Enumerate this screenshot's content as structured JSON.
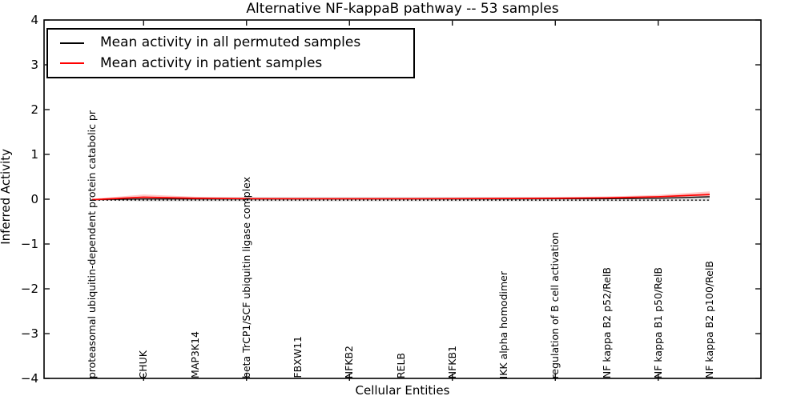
{
  "chart_data": {
    "type": "line",
    "title": "Alternative NF-kappaB pathway -- 53 samples",
    "xlabel": "Cellular Entities",
    "ylabel": "Inferred Activity",
    "ylim": [
      -4,
      4
    ],
    "yticks": [
      4,
      3,
      2,
      1,
      0,
      -1,
      -2,
      -3,
      -4
    ],
    "grid": false,
    "legend_position": "upper left",
    "categories": [
      "proteasomal ubiquitin-dependent protein catabolic pr",
      "CHUK",
      "MAP3K14",
      "beta TrCP1/SCF ubiquitin ligase complex",
      "FBXW11",
      "NFKB2",
      "RELB",
      "NFKB1",
      "IKK alpha homodimer",
      "regulation of B cell activation",
      "NF kappa B2 p52/RelB",
      "NF kappa B1 p50/RelB",
      "NF kappa B2 p100/RelB"
    ],
    "xtick_category_indices": [
      1,
      3,
      5,
      7,
      9,
      11
    ],
    "zero_line": {
      "value": 0,
      "style": "dotted",
      "color": "#000000"
    },
    "series": [
      {
        "name": "Mean activity in all permuted samples",
        "color": "#000000",
        "values": [
          -0.01,
          0.005,
          0.005,
          0.005,
          0.005,
          0.005,
          0.005,
          0.005,
          0.005,
          0.01,
          0.01,
          0.02,
          0.055
        ],
        "band_upper": [
          0.0,
          0.05,
          0.05,
          0.05,
          0.05,
          0.05,
          0.05,
          0.05,
          0.05,
          0.05,
          0.05,
          0.055,
          0.095
        ],
        "band_lower": [
          -0.03,
          -0.05,
          -0.05,
          -0.05,
          -0.05,
          -0.05,
          -0.05,
          -0.05,
          -0.05,
          -0.05,
          -0.05,
          -0.05,
          -0.04
        ],
        "band_color": "#c0c0c0"
      },
      {
        "name": "Mean activity in patient samples",
        "color": "#ff0000",
        "values": [
          -0.01,
          0.045,
          0.02,
          0.012,
          0.01,
          0.01,
          0.01,
          0.012,
          0.015,
          0.02,
          0.03,
          0.055,
          0.105
        ],
        "band_upper": [
          0.01,
          0.105,
          0.055,
          0.03,
          0.025,
          0.025,
          0.025,
          0.03,
          0.035,
          0.045,
          0.06,
          0.095,
          0.175
        ],
        "band_lower": [
          -0.03,
          -0.005,
          -0.01,
          -0.005,
          -0.005,
          -0.005,
          -0.005,
          -0.005,
          0.0,
          0.0,
          0.005,
          0.02,
          0.05
        ],
        "band_color": "#ff9e9e"
      }
    ]
  }
}
